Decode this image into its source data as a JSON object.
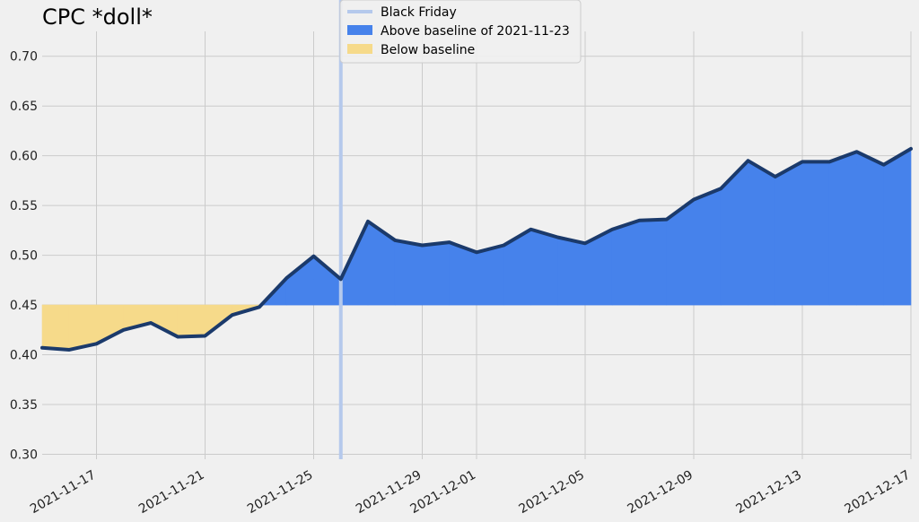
{
  "chart_data": {
    "type": "area",
    "title": "CPC *doll*",
    "xlabel": "",
    "ylabel": "",
    "baseline": 0.45,
    "baseline_date": "2021-11-23",
    "ylim": [
      0.295,
      0.725
    ],
    "xlim": [
      "2021-11-15",
      "2021-12-17"
    ],
    "yticks": [
      "0.30",
      "0.35",
      "0.40",
      "0.45",
      "0.50",
      "0.55",
      "0.60",
      "0.65",
      "0.70"
    ],
    "xticks": [
      "2021-11-17",
      "2021-11-21",
      "2021-11-25",
      "2021-11-29",
      "2021-12-01",
      "2021-12-05",
      "2021-12-09",
      "2021-12-13",
      "2021-12-17"
    ],
    "grid": true,
    "legend_position": "top-center",
    "vline": {
      "label": "Black Friday",
      "date": "2021-11-26"
    },
    "legend": [
      {
        "label": "Black Friday",
        "kind": "line",
        "color": "#b5c9ec"
      },
      {
        "label": "Above baseline of 2021-11-23",
        "kind": "patch",
        "color": "#4682eb"
      },
      {
        "label": "Below baseline",
        "kind": "patch",
        "color": "#f6da8a"
      }
    ],
    "colors": {
      "line": "#1b3a6b",
      "above": "#4682eb",
      "below": "#f6da8a",
      "vline": "#b5c9ec",
      "grid": "#cbcbcb"
    },
    "series": [
      {
        "x": [
          "2021-11-15",
          "2021-11-16",
          "2021-11-17",
          "2021-11-18",
          "2021-11-19",
          "2021-11-20",
          "2021-11-21",
          "2021-11-22",
          "2021-11-23",
          "2021-11-24",
          "2021-11-25",
          "2021-11-26",
          "2021-11-27",
          "2021-11-28",
          "2021-11-29",
          "2021-11-30",
          "2021-12-01",
          "2021-12-02",
          "2021-12-03",
          "2021-12-04",
          "2021-12-05",
          "2021-12-06",
          "2021-12-07",
          "2021-12-08",
          "2021-12-09",
          "2021-12-10",
          "2021-12-11",
          "2021-12-12",
          "2021-12-13",
          "2021-12-14",
          "2021-12-15",
          "2021-12-16",
          "2021-12-17"
        ],
        "values": [
          0.407,
          0.405,
          0.411,
          0.425,
          0.432,
          0.418,
          0.419,
          0.44,
          0.448,
          0.477,
          0.499,
          0.476,
          0.534,
          0.515,
          0.51,
          0.513,
          0.503,
          0.51,
          0.526,
          0.518,
          0.512,
          0.526,
          0.535,
          0.536,
          0.556,
          0.567,
          0.595,
          0.579,
          0.594,
          0.594,
          0.604,
          0.591,
          0.607
        ]
      }
    ]
  }
}
